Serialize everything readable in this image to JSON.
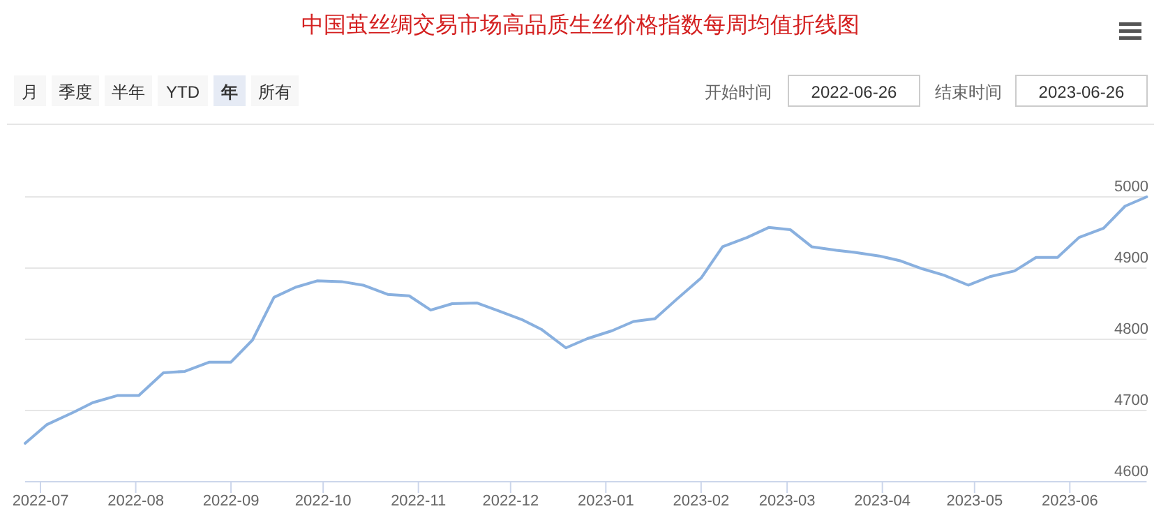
{
  "chart_data": {
    "type": "line",
    "title": "中国茧丝绸交易市场高品质生丝价格指数每周均值折线图",
    "annotations": [
      "月",
      "季度",
      "半年",
      "YTD",
      "年",
      "所有",
      "开始时间",
      "2022-06-26",
      "结束时间",
      "2023-06-26"
    ],
    "x": [
      "2022-06-26",
      "2022-07-03",
      "2022-07-12",
      "2022-07-18",
      "2022-07-26",
      "2022-08-02",
      "2022-08-10",
      "2022-08-17",
      "2022-08-25",
      "2022-09-01",
      "2022-09-08",
      "2022-09-15",
      "2022-09-22",
      "2022-09-29",
      "2022-10-07",
      "2022-10-14",
      "2022-10-22",
      "2022-10-29",
      "2022-11-05",
      "2022-11-12",
      "2022-11-20",
      "2022-11-27",
      "2022-12-05",
      "2022-12-11",
      "2022-12-19",
      "2022-12-26",
      "2023-01-03",
      "2023-01-10",
      "2023-01-17",
      "2023-01-24",
      "2023-02-01",
      "2023-02-08",
      "2023-02-16",
      "2023-02-23",
      "2023-03-02",
      "2023-03-09",
      "2023-03-17",
      "2023-03-23",
      "2023-03-31",
      "2023-04-07",
      "2023-04-14",
      "2023-04-21",
      "2023-04-29",
      "2023-05-06",
      "2023-05-14",
      "2023-05-21",
      "2023-05-28",
      "2023-06-04",
      "2023-06-12",
      "2023-06-19",
      "2023-06-26"
    ],
    "series": [
      {
        "color": "#89b0df",
        "values": [
          4654,
          4680,
          4698,
          4711,
          4721,
          4721,
          4753,
          4755,
          4768,
          4768,
          4799,
          4859,
          4873,
          4882,
          4881,
          4876,
          4863,
          4861,
          4841,
          4850,
          4851,
          4840,
          4827,
          4814,
          4788,
          4801,
          4812,
          4825,
          4829,
          4856,
          4886,
          4930,
          4943,
          4957,
          4954,
          4930,
          4925,
          4922,
          4917,
          4910,
          4899,
          4890,
          4876,
          4888,
          4896,
          4915,
          4915,
          4943,
          4956,
          4987,
          5000
        ]
      }
    ],
    "xlim": [
      "2022-06-26",
      "2023-06-26"
    ],
    "xticks": [
      {
        "value": "2022-07-01",
        "label": "2022-07"
      },
      {
        "value": "2022-08-01",
        "label": "2022-08"
      },
      {
        "value": "2022-09-01",
        "label": "2022-09"
      },
      {
        "value": "2022-10-01",
        "label": "2022-10"
      },
      {
        "value": "2022-11-01",
        "label": "2022-11"
      },
      {
        "value": "2022-12-01",
        "label": "2022-12"
      },
      {
        "value": "2023-01-01",
        "label": "2023-01"
      },
      {
        "value": "2023-02-01",
        "label": "2023-02"
      },
      {
        "value": "2023-03-01",
        "label": "2023-03"
      },
      {
        "value": "2023-04-01",
        "label": "2023-04"
      },
      {
        "value": "2023-05-01",
        "label": "2023-05"
      },
      {
        "value": "2023-06-01",
        "label": "2023-06"
      }
    ],
    "ylim": [
      4600,
      5000
    ],
    "yticks": [
      4600,
      4700,
      4800,
      4900,
      5000
    ],
    "grid": "y",
    "marker": "none",
    "line_style": "solid"
  }
}
